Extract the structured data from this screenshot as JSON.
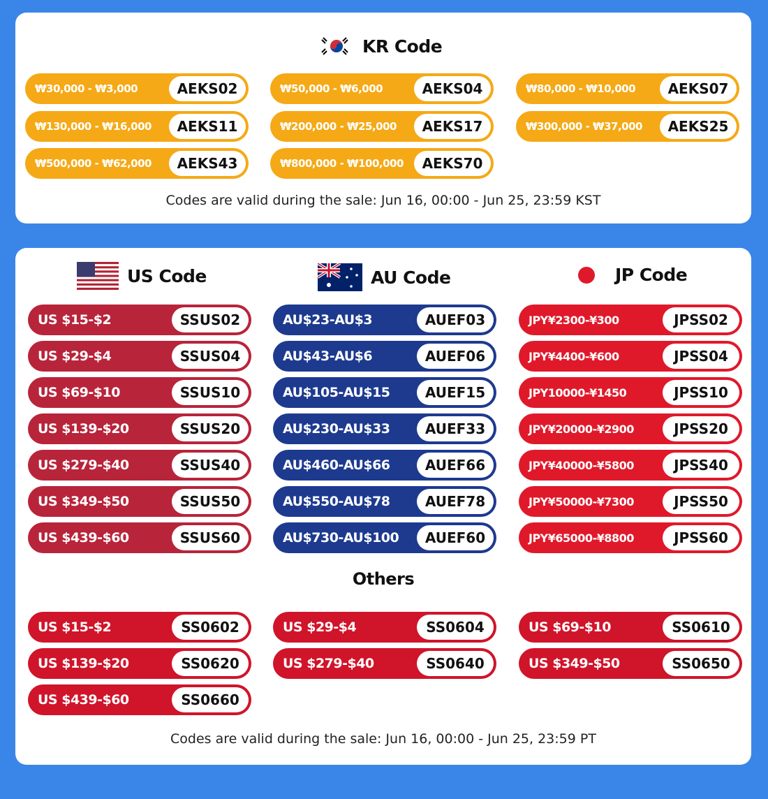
{
  "kr": {
    "title": "KR Code",
    "rows": [
      {
        "range": "₩30,000 - ₩3,000",
        "code": "AEKS02"
      },
      {
        "range": "₩50,000 - ₩6,000",
        "code": "AEKS04"
      },
      {
        "range": "₩80,000 - ₩10,000",
        "code": "AEKS07"
      },
      {
        "range": "₩130,000 - ₩16,000",
        "code": "AEKS11"
      },
      {
        "range": "₩200,000 - ₩25,000",
        "code": "AEKS17"
      },
      {
        "range": "₩300,000 - ₩37,000",
        "code": "AEKS25"
      },
      {
        "range": "₩500,000 - ₩62,000",
        "code": "AEKS43"
      },
      {
        "range": "₩800,000 - ₩100,000",
        "code": "AEKS70"
      }
    ],
    "note": "Codes are valid during the sale: Jun 16, 00:00 - Jun 25, 23:59 KST"
  },
  "us": {
    "title": "US Code",
    "rows": [
      {
        "range": "US $15-$2",
        "code": "SSUS02"
      },
      {
        "range": "US $29-$4",
        "code": "SSUS04"
      },
      {
        "range": "US $69-$10",
        "code": "SSUS10"
      },
      {
        "range": "US $139-$20",
        "code": "SSUS20"
      },
      {
        "range": "US $279-$40",
        "code": "SSUS40"
      },
      {
        "range": "US $349-$50",
        "code": "SSUS50"
      },
      {
        "range": "US $439-$60",
        "code": "SSUS60"
      }
    ]
  },
  "au": {
    "title": "AU Code",
    "rows": [
      {
        "range": "AU$23-AU$3",
        "code": "AUEF03"
      },
      {
        "range": "AU$43-AU$6",
        "code": "AUEF06"
      },
      {
        "range": "AU$105-AU$15",
        "code": "AUEF15"
      },
      {
        "range": "AU$230-AU$33",
        "code": "AUEF33"
      },
      {
        "range": "AU$460-AU$66",
        "code": "AUEF66"
      },
      {
        "range": "AU$550-AU$78",
        "code": "AUEF78"
      },
      {
        "range": "AU$730-AU$100",
        "code": "AUEF60"
      }
    ]
  },
  "jp": {
    "title": "JP Code",
    "rows": [
      {
        "range": "JPY¥2300-¥300",
        "code": "JPSS02"
      },
      {
        "range": "JPY¥4400-¥600",
        "code": "JPSS04"
      },
      {
        "range": "JPY10000-¥1450",
        "code": "JPSS10"
      },
      {
        "range": "JPY¥20000-¥2900",
        "code": "JPSS20"
      },
      {
        "range": "JPY¥40000-¥5800",
        "code": "JPSS40"
      },
      {
        "range": "JPY¥50000-¥7300",
        "code": "JPSS50"
      },
      {
        "range": "JPY¥65000-¥8800",
        "code": "JPSS60"
      }
    ]
  },
  "others": {
    "title": "Others",
    "rows": [
      {
        "range": "US $15-$2",
        "code": "SS0602"
      },
      {
        "range": "US $29-$4",
        "code": "SS0604"
      },
      {
        "range": "US $69-$10",
        "code": "SS0610"
      },
      {
        "range": "US $139-$20",
        "code": "SS0620"
      },
      {
        "range": "US $279-$40",
        "code": "SS0640"
      },
      {
        "range": "US $349-$50",
        "code": "SS0650"
      },
      {
        "range": "US $439-$60",
        "code": "SS0660"
      }
    ]
  },
  "note": "Codes are valid during the sale: Jun 16, 00:00 - Jun 25, 23:59 PT",
  "colors": {
    "background": "#3a86e8",
    "kr": "#f5a916",
    "us": "#b8243a",
    "au": "#1d3a8f",
    "jp": "#e0192a",
    "others": "#d0142a"
  }
}
